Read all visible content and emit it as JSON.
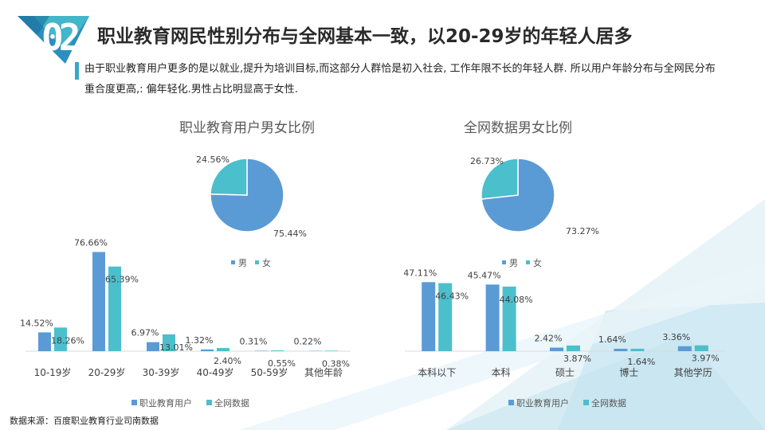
{
  "badge": "02",
  "title": "职业教育网民性别分布与全网基本一致，以20-29岁的年轻人居多",
  "description": "由于职业教育用户更多的是以就业,提升为培训目标,而这部分人群恰是初入社会, 工作年限不长的年轻人群. 所以用户年龄分布与全网民分布重合度更高,: 偏年轻化.男性占比明显高于女性.",
  "source": "数据来源：百度职业教育行业司南数据",
  "colors": {
    "male": "#5b9bd5",
    "female": "#4bbfcc",
    "accent": "#3aa7c4",
    "badge": "#2b8fbf"
  },
  "chart_data": [
    {
      "type": "pie",
      "title": "职业教育用户男女比例",
      "labels": [
        "男",
        "女"
      ],
      "values": [
        75.44,
        24.56
      ],
      "value_labels": [
        "75.44%",
        "24.56%"
      ],
      "legend_position": "bottom"
    },
    {
      "type": "pie",
      "title": "全网数据男女比例",
      "labels": [
        "男",
        "女"
      ],
      "values": [
        73.27,
        26.73
      ],
      "value_labels": [
        "73.27%",
        "26.73%"
      ],
      "legend_position": "top"
    },
    {
      "type": "bar",
      "categories": [
        "10-19岁",
        "20-29岁",
        "30-39岁",
        "40-49岁",
        "50-59岁",
        "其他年龄"
      ],
      "series": [
        {
          "name": "职业教育用户",
          "values": [
            14.52,
            76.66,
            6.97,
            1.32,
            0.31,
            0.22
          ],
          "labels": [
            "14.52%",
            "76.66%",
            "6.97%",
            "1.32%",
            "0.31%",
            "0.22%"
          ]
        },
        {
          "name": "全网数据",
          "values": [
            18.26,
            65.39,
            13.01,
            2.4,
            0.55,
            0.38
          ],
          "labels": [
            "18.26%",
            "65.39%",
            "13.01%",
            "2.40%",
            "0.55%",
            "0.38%"
          ]
        }
      ],
      "ylim": [
        0,
        80
      ],
      "legend_position": "bottom"
    },
    {
      "type": "bar",
      "categories": [
        "本科以下",
        "本科",
        "硕士",
        "博士",
        "其他学历"
      ],
      "series": [
        {
          "name": "职业教育用户",
          "values": [
            47.11,
            45.47,
            2.42,
            1.64,
            3.36
          ],
          "labels": [
            "47.11%",
            "45.47%",
            "2.42%",
            "1.64%",
            "3.36%"
          ]
        },
        {
          "name": "全网数据",
          "values": [
            46.43,
            44.08,
            3.87,
            1.64,
            3.97
          ],
          "labels": [
            "46.43%",
            "44.08%",
            "3.87%",
            "1.64%",
            "3.97%"
          ]
        }
      ],
      "ylim": [
        0,
        50
      ],
      "legend_position": "bottom"
    }
  ]
}
